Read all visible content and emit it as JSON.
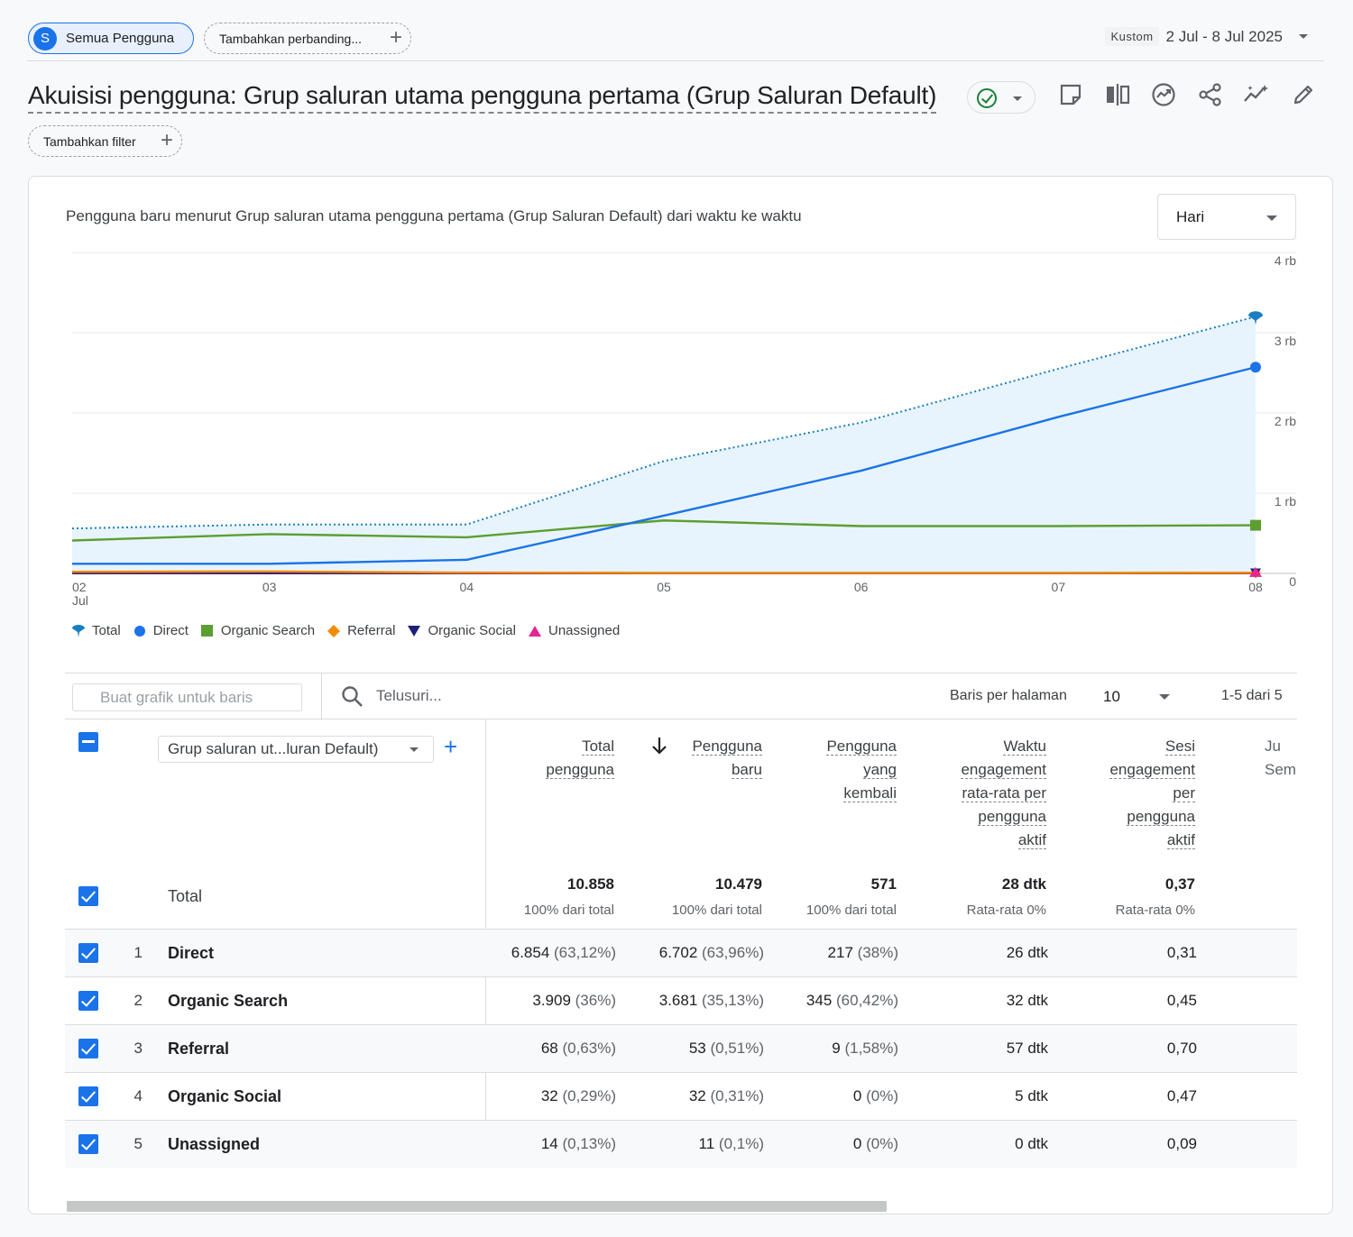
{
  "topbar": {
    "segment_avatar": "S",
    "segment_label": "Semua Pengguna",
    "compare_label": "Tambahkan perbanding...",
    "date_badge": "Kustom",
    "date_range": "2 Jul - 8 Jul 2025"
  },
  "page": {
    "title": "Akuisisi pengguna: Grup saluran utama pengguna pertama (Grup Saluran Default)",
    "filter_label": "Tambahkan filter",
    "toolbar_icons": [
      "annotation-icon",
      "compare-icon",
      "insights-icon",
      "share-icon",
      "trend-icon",
      "edit-icon"
    ]
  },
  "chart": {
    "title": "Pengguna baru menurut Grup saluran utama pengguna pertama (Grup Saluran Default) dari waktu ke waktu",
    "granularity": "Hari",
    "colors": {
      "Total": "#1a7fc1",
      "Direct": "#1a73e8",
      "Organic Search": "#5c9e31",
      "Referral": "#f08c00",
      "Organic Social": "#1f1f7a",
      "Unassigned": "#e52592",
      "area_fill": "#e8f4fd"
    }
  },
  "chart_data": {
    "type": "line",
    "x": [
      "02",
      "03",
      "04",
      "05",
      "06",
      "07",
      "08"
    ],
    "x_sublabel_first": "Jul",
    "y_ticks": [
      "0",
      "1 rb",
      "2 rb",
      "3 rb",
      "4 rb"
    ],
    "ylim": [
      0,
      4000
    ],
    "grid": true,
    "legend_position": "bottom-left",
    "series": [
      {
        "name": "Total",
        "style": "dotted",
        "marker": "pin",
        "values": [
          560,
          610,
          610,
          1400,
          1880,
          2550,
          3200
        ]
      },
      {
        "name": "Direct",
        "style": "solid",
        "marker": "circle",
        "values": [
          120,
          120,
          170,
          720,
          1280,
          1950,
          2570
        ]
      },
      {
        "name": "Organic Search",
        "style": "solid",
        "marker": "square",
        "values": [
          410,
          490,
          450,
          660,
          590,
          590,
          600
        ]
      },
      {
        "name": "Referral",
        "style": "solid",
        "marker": "diamond",
        "values": [
          20,
          25,
          10,
          5,
          5,
          5,
          8
        ]
      },
      {
        "name": "Organic Social",
        "style": "solid",
        "marker": "triangle-down",
        "values": [
          5,
          5,
          5,
          5,
          5,
          5,
          5
        ]
      },
      {
        "name": "Unassigned",
        "style": "solid",
        "marker": "triangle-up",
        "values": [
          2,
          2,
          2,
          2,
          2,
          2,
          2
        ]
      }
    ]
  },
  "table_controls": {
    "row_chart_placeholder": "Buat grafik untuk baris",
    "search_placeholder": "Telusuri...",
    "rows_per_page_label": "Baris per halaman",
    "rows_per_page": "10",
    "pager": "1-5 dari 5"
  },
  "table": {
    "dimension_select": "Grup saluran ut...luran Default)",
    "columns": [
      {
        "lines": [
          "Total",
          "pengguna"
        ]
      },
      {
        "lines": [
          "Pengguna",
          "baru"
        ]
      },
      {
        "lines": [
          "Pengguna",
          "yang",
          "kembali"
        ]
      },
      {
        "lines": [
          "Waktu",
          "engagement",
          "rata-rata per",
          "pengguna",
          "aktif"
        ]
      },
      {
        "lines": [
          "Sesi",
          "engagement",
          "per",
          "pengguna",
          "aktif"
        ]
      }
    ],
    "truncated_column": [
      "Ju",
      "Sem"
    ],
    "total": {
      "label": "Total",
      "values": [
        "10.858",
        "10.479",
        "571",
        "28 dtk",
        "0,37"
      ],
      "subs": [
        "100% dari total",
        "100% dari total",
        "100% dari total",
        "Rata-rata 0%",
        "Rata-rata 0%"
      ]
    },
    "rows": [
      {
        "n": "1",
        "name": "Direct",
        "c1": "6.854",
        "p1": "(63,12%)",
        "c2": "6.702",
        "p2": "(63,96%)",
        "c3": "217",
        "p3": "(38%)",
        "c4": "26 dtk",
        "c5": "0,31"
      },
      {
        "n": "2",
        "name": "Organic Search",
        "c1": "3.909",
        "p1": "(36%)",
        "c2": "3.681",
        "p2": "(35,13%)",
        "c3": "345",
        "p3": "(60,42%)",
        "c4": "32 dtk",
        "c5": "0,45"
      },
      {
        "n": "3",
        "name": "Referral",
        "c1": "68",
        "p1": "(0,63%)",
        "c2": "53",
        "p2": "(0,51%)",
        "c3": "9",
        "p3": "(1,58%)",
        "c4": "57 dtk",
        "c5": "0,70"
      },
      {
        "n": "4",
        "name": "Organic Social",
        "c1": "32",
        "p1": "(0,29%)",
        "c2": "32",
        "p2": "(0,31%)",
        "c3": "0",
        "p3": "(0%)",
        "c4": "5 dtk",
        "c5": "0,47"
      },
      {
        "n": "5",
        "name": "Unassigned",
        "c1": "14",
        "p1": "(0,13%)",
        "c2": "11",
        "p2": "(0,1%)",
        "c3": "0",
        "p3": "(0%)",
        "c4": "0 dtk",
        "c5": "0,09"
      }
    ]
  }
}
